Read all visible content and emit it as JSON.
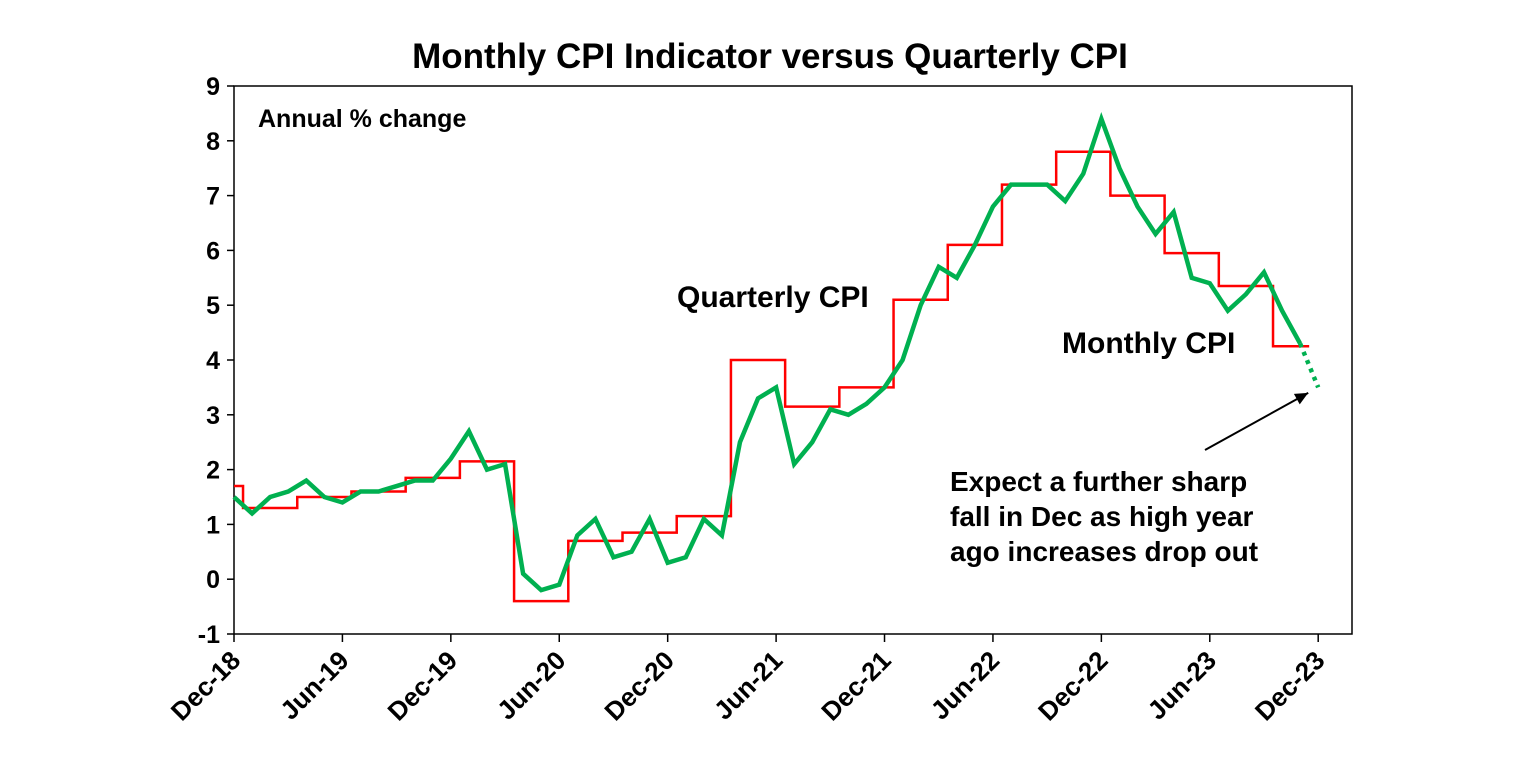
{
  "chart_data": {
    "type": "line",
    "title": "Monthly CPI Indicator versus Quarterly CPI",
    "subtitle": "Annual % change",
    "xlabel": "",
    "ylabel": "",
    "ylim": [
      -1,
      9
    ],
    "yticks": [
      -1,
      0,
      1,
      2,
      3,
      4,
      5,
      6,
      7,
      8,
      9
    ],
    "x_start": "Dec-18",
    "x_end": "Dec-23",
    "xticks": [
      "Dec-18",
      "Jun-19",
      "Dec-19",
      "Jun-20",
      "Dec-20",
      "Jun-21",
      "Dec-21",
      "Jun-22",
      "Dec-22",
      "Jun-23",
      "Dec-23"
    ],
    "grid": false,
    "series": [
      {
        "name": "Quarterly CPI",
        "color": "#ff0000",
        "style": "step",
        "x": [
          "Dec-18",
          "Jan-19",
          "Feb-19",
          "Mar-19",
          "Apr-19",
          "May-19",
          "Jun-19",
          "Jul-19",
          "Aug-19",
          "Sep-19",
          "Oct-19",
          "Nov-19",
          "Dec-19",
          "Jan-20",
          "Feb-20",
          "Mar-20",
          "Apr-20",
          "May-20",
          "Jun-20",
          "Jul-20",
          "Aug-20",
          "Sep-20",
          "Oct-20",
          "Nov-20",
          "Dec-20",
          "Jan-21",
          "Feb-21",
          "Mar-21",
          "Apr-21",
          "May-21",
          "Jun-21",
          "Jul-21",
          "Aug-21",
          "Sep-21",
          "Oct-21",
          "Nov-21",
          "Dec-21",
          "Jan-22",
          "Feb-22",
          "Mar-22",
          "Apr-22",
          "May-22",
          "Jun-22",
          "Jul-22",
          "Aug-22",
          "Sep-22",
          "Oct-22",
          "Nov-22",
          "Dec-22",
          "Jan-23",
          "Feb-23",
          "Mar-23",
          "Apr-23",
          "May-23",
          "Jun-23",
          "Jul-23",
          "Aug-23",
          "Sep-23",
          "Oct-23",
          "Nov-23"
        ],
        "values": [
          1.7,
          1.3,
          1.3,
          1.3,
          1.5,
          1.5,
          1.5,
          1.6,
          1.6,
          1.6,
          1.85,
          1.85,
          1.85,
          2.15,
          2.15,
          2.15,
          -0.4,
          -0.4,
          -0.4,
          0.7,
          0.7,
          0.7,
          0.85,
          0.85,
          0.85,
          1.15,
          1.15,
          1.15,
          4.0,
          4.0,
          4.0,
          3.15,
          3.15,
          3.15,
          3.5,
          3.5,
          3.5,
          5.1,
          5.1,
          5.1,
          6.1,
          6.1,
          6.1,
          7.2,
          7.2,
          7.2,
          7.8,
          7.8,
          7.8,
          7.0,
          7.0,
          7.0,
          5.95,
          5.95,
          5.95,
          5.35,
          5.35,
          5.35,
          4.25,
          4.25
        ]
      },
      {
        "name": "Monthly CPI",
        "color": "#00b050",
        "style": "line",
        "x": [
          "Dec-18",
          "Jan-19",
          "Feb-19",
          "Mar-19",
          "Apr-19",
          "May-19",
          "Jun-19",
          "Jul-19",
          "Aug-19",
          "Sep-19",
          "Oct-19",
          "Nov-19",
          "Dec-19",
          "Jan-20",
          "Feb-20",
          "Mar-20",
          "Apr-20",
          "May-20",
          "Jun-20",
          "Jul-20",
          "Aug-20",
          "Sep-20",
          "Oct-20",
          "Nov-20",
          "Dec-20",
          "Jan-21",
          "Feb-21",
          "Mar-21",
          "Apr-21",
          "May-21",
          "Jun-21",
          "Jul-21",
          "Aug-21",
          "Sep-21",
          "Oct-21",
          "Nov-21",
          "Dec-21",
          "Jan-22",
          "Feb-22",
          "Mar-22",
          "Apr-22",
          "May-22",
          "Jun-22",
          "Jul-22",
          "Aug-22",
          "Sep-22",
          "Oct-22",
          "Nov-22",
          "Dec-22",
          "Jan-23",
          "Feb-23",
          "Mar-23",
          "Apr-23",
          "May-23",
          "Jun-23",
          "Jul-23",
          "Aug-23",
          "Sep-23",
          "Oct-23",
          "Nov-23"
        ],
        "values": [
          1.5,
          1.2,
          1.5,
          1.6,
          1.8,
          1.5,
          1.4,
          1.6,
          1.6,
          1.7,
          1.8,
          1.8,
          2.2,
          2.7,
          2.0,
          2.1,
          0.1,
          -0.2,
          -0.1,
          0.8,
          1.1,
          0.4,
          0.5,
          1.1,
          0.3,
          0.4,
          1.1,
          0.8,
          2.5,
          3.3,
          3.5,
          2.1,
          2.5,
          3.1,
          3.0,
          3.2,
          3.5,
          4.0,
          5.0,
          5.7,
          5.5,
          6.1,
          6.8,
          7.2,
          7.2,
          7.2,
          6.9,
          7.4,
          8.4,
          7.5,
          6.8,
          6.3,
          6.7,
          5.5,
          5.4,
          4.9,
          5.2,
          5.6,
          4.9,
          4.3
        ]
      },
      {
        "name": "",
        "color": "#00b050",
        "style": "dotted",
        "x": [
          "Nov-23",
          "Dec-23"
        ],
        "values": [
          4.3,
          3.5
        ]
      }
    ],
    "annotations": [
      {
        "text": "Quarterly CPI",
        "color": "#ff0000"
      },
      {
        "text": "Monthly CPI",
        "color": "#00b050"
      },
      {
        "lines": [
          "Expect a further sharp",
          "fall in Dec as high year",
          "ago increases drop out"
        ],
        "arrow_to_x": "Dec-23",
        "arrow_to_y": 3.4
      }
    ]
  }
}
